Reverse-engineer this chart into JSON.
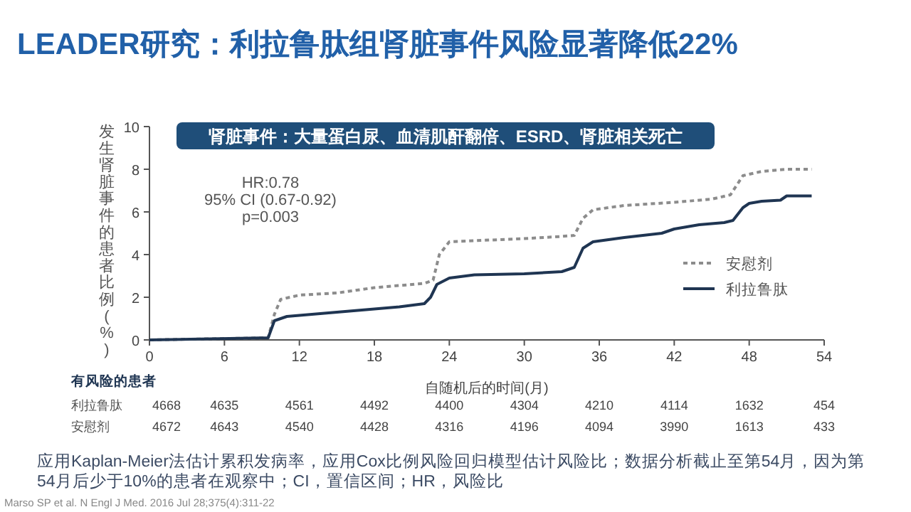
{
  "chart_data": {
    "type": "line",
    "title": "LEADER研究：利拉鲁肽组肾脏事件风险显著降低22%",
    "subtitle": "肾脏事件：大量蛋白尿、血清肌酐翻倍、ESRD、肾脏相关死亡",
    "xlabel": "自随机后的时间(月)",
    "ylabel": "发生肾脏事件的患者比例(%)",
    "xlim": [
      0,
      54
    ],
    "xticks": [
      0,
      6,
      12,
      18,
      24,
      30,
      36,
      42,
      48,
      54
    ],
    "ylim": [
      0,
      10
    ],
    "yticks": [
      0,
      2,
      4,
      6,
      8,
      10
    ],
    "grid": false,
    "legend": "right",
    "series": [
      {
        "name": "安慰剂",
        "color": "#8c8c8c",
        "line_style": "dotted",
        "x": [
          0,
          9.5,
          10,
          10.5,
          12,
          15,
          18,
          20,
          22,
          22.7,
          23.2,
          24,
          26,
          30,
          33,
          34,
          34.7,
          35.5,
          38,
          42,
          45,
          46.5,
          47.5,
          49,
          51,
          53
        ],
        "values": [
          0,
          0.1,
          1.2,
          1.9,
          2.1,
          2.2,
          2.45,
          2.55,
          2.65,
          2.8,
          4.0,
          4.6,
          4.65,
          4.75,
          4.85,
          4.9,
          5.7,
          6.1,
          6.3,
          6.45,
          6.6,
          6.8,
          7.7,
          7.9,
          8.0,
          8.0
        ]
      },
      {
        "name": "利拉鲁肽",
        "color": "#1f3552",
        "line_style": "solid",
        "x": [
          0,
          9.5,
          10,
          11,
          12,
          14,
          17,
          20,
          22,
          22.5,
          23,
          24,
          26,
          30,
          33,
          34,
          34.7,
          35.5,
          38,
          41,
          42,
          44,
          46,
          46.7,
          47.5,
          48,
          49,
          50.5,
          51,
          53
        ],
        "values": [
          0,
          0.1,
          0.9,
          1.1,
          1.15,
          1.25,
          1.4,
          1.55,
          1.7,
          2.0,
          2.6,
          2.9,
          3.05,
          3.1,
          3.2,
          3.4,
          4.3,
          4.6,
          4.8,
          5.0,
          5.2,
          5.4,
          5.5,
          5.6,
          6.2,
          6.4,
          6.5,
          6.55,
          6.75,
          6.75
        ]
      }
    ],
    "annotations": [
      "HR:0.78",
      "95% CI (0.67-0.92)",
      "p=0.003",
      "有风险的患者",
      "利拉鲁肽",
      "4668",
      "4635",
      "4561",
      "4492",
      "4400",
      "4304",
      "4210",
      "4114",
      "1632",
      "454",
      "安慰剂",
      "4672",
      "4643",
      "4540",
      "4428",
      "4316",
      "4196",
      "4094",
      "3990",
      "1613",
      "433",
      "应用Kaplan-Meier法估计累积发病率，应用Cox比例风险回归模型估计风险比；数据分析截止至第54月，因为第54月后少于10%的患者在观察中；CI，置信区间；HR，风险比",
      "Marso SP et al. N Engl J Med. 2016 Jul 28;375(4):311-22"
    ]
  }
}
